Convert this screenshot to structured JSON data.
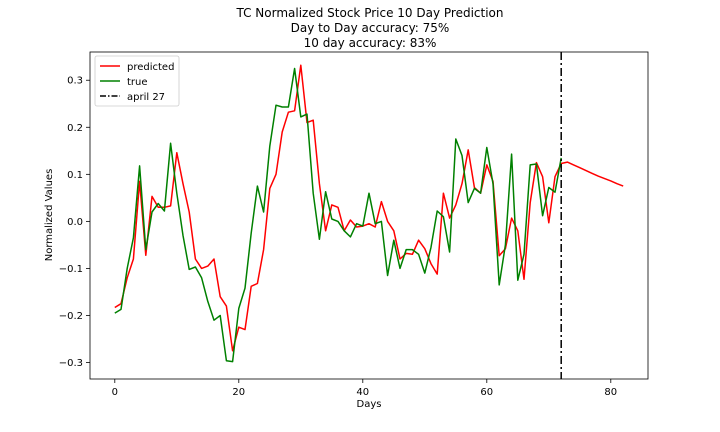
{
  "chart_data": {
    "type": "line",
    "title_lines": [
      "TC Normalized Stock Price 10 Day Prediction",
      "Day to Day accuracy: 75%",
      "10 day accuracy: 83%"
    ],
    "xlabel": "Days",
    "ylabel": "Normalized Values",
    "xlim": [
      -4,
      86
    ],
    "ylim": [
      -0.335,
      0.36
    ],
    "xticks": [
      0,
      20,
      40,
      60,
      80
    ],
    "yticks": [
      -0.3,
      -0.2,
      -0.1,
      0.0,
      0.1,
      0.2,
      0.3
    ],
    "ytick_labels": [
      "−0.3",
      "−0.2",
      "−0.1",
      "0.0",
      "0.1",
      "0.2",
      "0.3"
    ],
    "legend_position": "upper-left",
    "series": [
      {
        "name": "predicted",
        "color": "#ff0000",
        "x": [
          0,
          1,
          2,
          3,
          4,
          5,
          6,
          7,
          8,
          9,
          10,
          11,
          12,
          13,
          14,
          15,
          16,
          17,
          18,
          19,
          20,
          21,
          22,
          23,
          24,
          25,
          26,
          27,
          28,
          29,
          30,
          31,
          32,
          33,
          34,
          35,
          36,
          37,
          38,
          39,
          40,
          41,
          42,
          43,
          44,
          45,
          46,
          47,
          48,
          49,
          50,
          51,
          52,
          53,
          54,
          55,
          56,
          57,
          58,
          59,
          60,
          61,
          62,
          63,
          64,
          65,
          66,
          67,
          68,
          69,
          70,
          71,
          72,
          73,
          74,
          75,
          76,
          77,
          78,
          79,
          80,
          81,
          82
        ],
        "y": [
          -0.183,
          -0.175,
          -0.12,
          -0.08,
          0.085,
          -0.072,
          0.053,
          0.03,
          0.03,
          0.033,
          0.146,
          0.08,
          0.02,
          -0.08,
          -0.1,
          -0.095,
          -0.08,
          -0.16,
          -0.18,
          -0.275,
          -0.225,
          -0.23,
          -0.138,
          -0.132,
          -0.06,
          0.07,
          0.1,
          0.19,
          0.232,
          0.235,
          0.332,
          0.21,
          0.215,
          0.08,
          -0.02,
          0.035,
          0.03,
          -0.02,
          0.003,
          -0.012,
          -0.01,
          -0.005,
          -0.012,
          0.042,
          0.0,
          -0.02,
          -0.08,
          -0.068,
          -0.07,
          -0.04,
          -0.058,
          -0.09,
          -0.112,
          0.06,
          0.007,
          0.035,
          0.08,
          0.152,
          0.072,
          0.06,
          0.12,
          0.085,
          -0.073,
          -0.058,
          0.007,
          -0.02,
          -0.123,
          0.04,
          0.125,
          0.095,
          -0.003,
          0.095,
          0.123,
          0.126,
          0.12,
          0.114,
          0.108,
          0.102,
          0.096,
          0.091,
          0.086,
          0.08,
          0.075
        ]
      },
      {
        "name": "true",
        "color": "#008000",
        "x": [
          0,
          1,
          2,
          3,
          4,
          5,
          6,
          7,
          8,
          9,
          10,
          11,
          12,
          13,
          14,
          15,
          16,
          17,
          18,
          19,
          20,
          21,
          22,
          23,
          24,
          25,
          26,
          27,
          28,
          29,
          30,
          31,
          32,
          33,
          34,
          35,
          36,
          37,
          38,
          39,
          40,
          41,
          42,
          43,
          44,
          45,
          46,
          47,
          48,
          49,
          50,
          51,
          52,
          53,
          54,
          55,
          56,
          57,
          58,
          59,
          60,
          61,
          62,
          63,
          64,
          65,
          66,
          67,
          68,
          69,
          70,
          71,
          72
        ],
        "y": [
          -0.195,
          -0.187,
          -0.1,
          -0.035,
          0.118,
          -0.06,
          0.02,
          0.038,
          0.022,
          0.166,
          0.06,
          -0.03,
          -0.102,
          -0.097,
          -0.12,
          -0.17,
          -0.21,
          -0.2,
          -0.296,
          -0.298,
          -0.185,
          -0.142,
          -0.025,
          0.075,
          0.02,
          0.16,
          0.247,
          0.243,
          0.243,
          0.325,
          0.222,
          0.228,
          0.06,
          -0.038,
          0.063,
          0.005,
          0.0,
          -0.02,
          -0.033,
          -0.005,
          -0.01,
          0.06,
          -0.005,
          0.0,
          -0.115,
          -0.04,
          -0.1,
          -0.06,
          -0.06,
          -0.07,
          -0.11,
          -0.055,
          0.022,
          0.01,
          -0.065,
          0.175,
          0.14,
          0.04,
          0.07,
          0.06,
          0.157,
          0.08,
          -0.135,
          -0.05,
          0.143,
          -0.125,
          -0.07,
          0.12,
          0.122,
          0.012,
          0.072,
          0.062,
          0.135
        ]
      }
    ],
    "vline": {
      "x": 72,
      "label": "april 27",
      "color": "#000000",
      "style": "dash-dot"
    }
  }
}
